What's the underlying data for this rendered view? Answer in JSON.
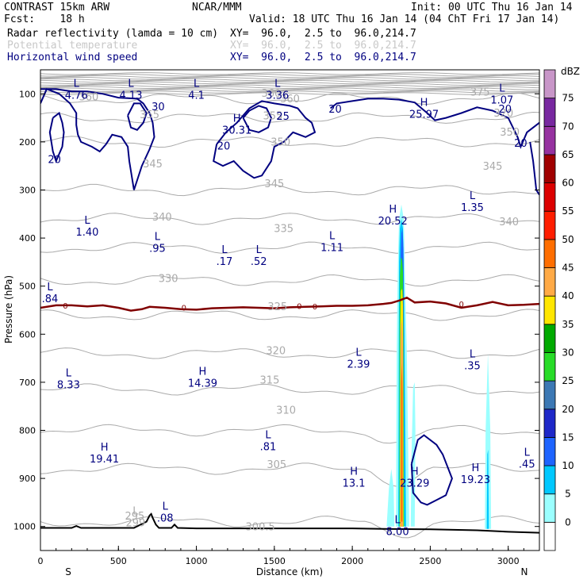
{
  "header": {
    "model": "CONTRAST 15km ARW",
    "org": "NCAR/MMM",
    "init": "Init: 00 UTC Thu 16 Jan 14",
    "fcst": "Fcst:    18 h",
    "valid": "Valid: 18 UTC Thu 16 Jan 14 (04 ChT Fri 17 Jan 14)",
    "fields": [
      {
        "name": "Radar reflectivity (lamda = 10 cm)",
        "xy": "XY=  96.0,  2.5 to  96.0,214.7",
        "color": "#000000"
      },
      {
        "name": "Potential temperature",
        "xy": "XY=  96.0,  2.5 to  96.0,214.7",
        "color": "#c8c8c8"
      },
      {
        "name": "Horizontal wind speed",
        "xy": "XY=  96.0,  2.5 to  96.0,214.7",
        "color": "#000080"
      }
    ]
  },
  "chart_data": {
    "type": "cross-section contour",
    "xlabel": "Distance (km)",
    "ylabel": "Pressure (hPa)",
    "xlim": [
      0,
      3200
    ],
    "ylim": [
      1050,
      50
    ],
    "xticks": [
      0,
      500,
      1000,
      1500,
      2000,
      2500,
      3000
    ],
    "yticks": [
      100,
      200,
      300,
      400,
      500,
      600,
      700,
      800,
      900,
      1000
    ],
    "x_end_labels": {
      "left": "S",
      "right": "N"
    },
    "colorbar": {
      "unit": "dBZ",
      "levels": [
        0,
        5,
        10,
        15,
        20,
        25,
        30,
        35,
        40,
        45,
        50,
        55,
        60,
        65,
        70,
        75
      ],
      "colors": [
        "#ffffff",
        "#9bffff",
        "#00c8ff",
        "#1e64ff",
        "#1e28c8",
        "#3c78b4",
        "#28dc28",
        "#00aa00",
        "#ffe600",
        "#ffaa46",
        "#ff6e00",
        "#ff1e00",
        "#dc0000",
        "#a00000",
        "#9632a0",
        "#7828a0",
        "#c896c8"
      ]
    },
    "theta_isentropes": {
      "levels": [
        295,
        300,
        305,
        310,
        315,
        320,
        325,
        330,
        335,
        340,
        345,
        350,
        355,
        360,
        375
      ],
      "color": "#aaaaaa",
      "labels": [
        {
          "x": 605,
          "p": 977,
          "text": "295"
        },
        {
          "x": 1410,
          "p": 1000,
          "text": "300.5"
        },
        {
          "x": 1515,
          "p": 870,
          "text": "305"
        },
        {
          "x": 1575,
          "p": 757,
          "text": "310"
        },
        {
          "x": 1470,
          "p": 694,
          "text": "315"
        },
        {
          "x": 1510,
          "p": 633,
          "text": "320"
        },
        {
          "x": 1520,
          "p": 542,
          "text": "325"
        },
        {
          "x": 820,
          "p": 483,
          "text": "330"
        },
        {
          "x": 1560,
          "p": 379,
          "text": "335"
        },
        {
          "x": 780,
          "p": 355,
          "text": "340"
        },
        {
          "x": 3005,
          "p": 365,
          "text": "340"
        },
        {
          "x": 1500,
          "p": 286,
          "text": "345"
        },
        {
          "x": 720,
          "p": 245,
          "text": "345"
        },
        {
          "x": 2900,
          "p": 250,
          "text": "345"
        },
        {
          "x": 1540,
          "p": 199,
          "text": "350"
        },
        {
          "x": 3010,
          "p": 179,
          "text": "350"
        },
        {
          "x": 700,
          "p": 142,
          "text": "355"
        },
        {
          "x": 1490,
          "p": 145,
          "text": "355"
        },
        {
          "x": 310,
          "p": 105,
          "text": "360"
        },
        {
          "x": 1600,
          "p": 109,
          "text": "360"
        },
        {
          "x": 1480,
          "p": 98,
          "text": "360"
        },
        {
          "x": 2820,
          "p": 95,
          "text": "375"
        },
        {
          "x": 2970,
          "p": 139,
          "text": "320"
        }
      ]
    },
    "freezing_level": {
      "value": 0,
      "color": "#800000",
      "x": [
        0,
        100,
        200,
        300,
        400,
        500,
        580,
        650,
        700,
        800,
        900,
        1000,
        1100,
        1200,
        1300,
        1400,
        1500,
        1600,
        1700,
        1800,
        1900,
        2000,
        2100,
        2200,
        2250,
        2300,
        2350,
        2400,
        2500,
        2600,
        2700,
        2800,
        2900,
        3000,
        3100,
        3200
      ],
      "p": [
        545,
        540,
        540,
        542,
        540,
        545,
        551,
        548,
        543,
        545,
        548,
        549,
        546,
        545,
        544,
        545,
        546,
        544,
        543,
        542,
        541,
        541,
        540,
        537,
        535,
        530,
        524,
        534,
        532,
        536,
        545,
        540,
        533,
        540,
        539,
        537
      ]
    },
    "wind_speed_contours": {
      "levels": [
        20,
        25,
        30
      ],
      "color": "#000080",
      "labels": [
        {
          "x": 90,
          "p": 236,
          "text": "20"
        },
        {
          "x": 1175,
          "p": 208,
          "text": "20"
        },
        {
          "x": 1890,
          "p": 131,
          "text": "20"
        },
        {
          "x": 2980,
          "p": 131,
          "text": "20"
        },
        {
          "x": 3080,
          "p": 202,
          "text": "20"
        },
        {
          "x": 1555,
          "p": 146,
          "text": "25"
        },
        {
          "x": 755,
          "p": 126,
          "text": "30"
        }
      ]
    },
    "extrema": [
      {
        "type": "L",
        "x": 230,
        "value": "4.76",
        "p": 95
      },
      {
        "type": "L",
        "x": 580,
        "value": "4.13",
        "p": 95
      },
      {
        "type": "L",
        "x": 1000,
        "value": "4.1",
        "p": 95
      },
      {
        "type": "L",
        "x": 1520,
        "value": "3.36",
        "p": 95
      },
      {
        "type": "L",
        "x": 2960,
        "value": "1.07",
        "p": 105
      },
      {
        "type": "H",
        "x": 2460,
        "value": "25.97",
        "p": 135
      },
      {
        "type": "H",
        "x": 1260,
        "value": "30.31",
        "p": 168
      },
      {
        "type": "H",
        "x": 2260,
        "value": "20.52",
        "p": 357
      },
      {
        "type": "L",
        "x": 2770,
        "value": "1.35",
        "p": 329
      },
      {
        "type": "L",
        "x": 300,
        "value": "1.40",
        "p": 380
      },
      {
        "type": "L",
        "x": 750,
        "value": ".95",
        "p": 414
      },
      {
        "type": "L",
        "x": 1180,
        "value": ".17",
        "p": 441
      },
      {
        "type": "L",
        "x": 1400,
        "value": ".52",
        "p": 441
      },
      {
        "type": "L",
        "x": 1870,
        "value": "1.11",
        "p": 412
      },
      {
        "type": "L",
        "x": 0,
        "value": ".84",
        "p": 519
      },
      {
        "type": "L",
        "x": 2040,
        "value": "2.39",
        "p": 655
      },
      {
        "type": "L",
        "x": 2770,
        "value": ".35",
        "p": 658
      },
      {
        "type": "L",
        "x": 180,
        "value": "8.33",
        "p": 698
      },
      {
        "type": "H",
        "x": 1040,
        "value": "14.39",
        "p": 694
      },
      {
        "type": "L",
        "x": 1460,
        "value": ".81",
        "p": 826
      },
      {
        "type": "H",
        "x": 410,
        "value": "19.41",
        "p": 852
      },
      {
        "type": "L",
        "x": 3120,
        "value": ".45",
        "p": 863
      },
      {
        "type": "H",
        "x": 2010,
        "value": "13.1",
        "p": 902
      },
      {
        "type": "H",
        "x": 2400,
        "value": "23.29",
        "p": 902
      },
      {
        "type": "H",
        "x": 2790,
        "value": "19.23",
        "p": 895
      },
      {
        "type": "L",
        "x": 800,
        "value": ".08",
        "p": 975
      },
      {
        "type": "L",
        "x": 610,
        "value": "299",
        "p": 985
      },
      {
        "type": "L",
        "x": 2290,
        "value": "8.00",
        "p": 1003
      }
    ],
    "terrain": {
      "x": [
        0,
        200,
        230,
        260,
        300,
        600,
        680,
        700,
        710,
        720,
        740,
        760,
        800,
        840,
        860,
        880,
        1000,
        1500,
        2000,
        2200,
        2500,
        2800,
        3000,
        3200
      ],
      "p": [
        1003,
        1003,
        999,
        1003,
        1003,
        1003,
        990,
        977,
        974,
        982,
        996,
        1003,
        1003,
        1003,
        996,
        1003,
        1004,
        1004,
        1004,
        1005,
        1006,
        1008,
        1011,
        1013
      ]
    }
  }
}
